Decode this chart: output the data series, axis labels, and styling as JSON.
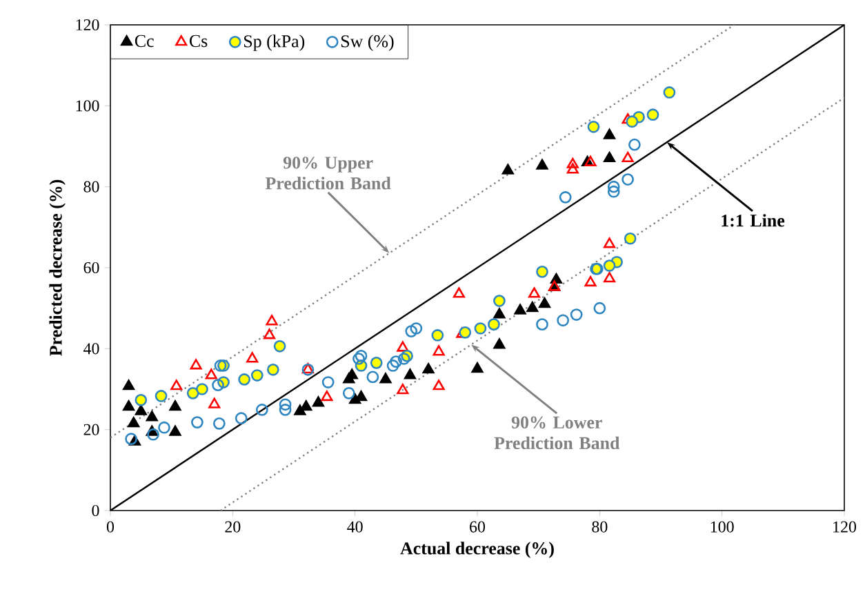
{
  "chart_data": {
    "type": "scatter",
    "xlabel": "Actual decrease (%)",
    "ylabel": "Predicted decrease (%)",
    "xlim": [
      0,
      120
    ],
    "ylim": [
      0,
      120
    ],
    "xticks": [
      0,
      20,
      40,
      60,
      80,
      100,
      120
    ],
    "yticks": [
      0,
      20,
      40,
      60,
      80,
      100,
      120
    ],
    "grid": false,
    "legend": "top left",
    "series": [
      {
        "name": "Cc",
        "color": "#000000",
        "marker": "triangle",
        "x": [
          3,
          3,
          3.8,
          4,
          5,
          6.8,
          6.8,
          10.6,
          10.6,
          31,
          32,
          34,
          39,
          40,
          39.5,
          41,
          45,
          49,
          52,
          60,
          63.6,
          63.6,
          67,
          69,
          71,
          72.6,
          65,
          70.6,
          78,
          81.6,
          81.6,
          72.9
        ],
        "values": [
          30.7,
          25.6,
          21.5,
          17,
          24.5,
          23,
          19.4,
          25.6,
          19.4,
          24.5,
          25.6,
          26.6,
          32.4,
          27.3,
          33.4,
          28,
          32.4,
          33.4,
          34.8,
          35,
          40.9,
          48.4,
          49.4,
          50,
          51,
          55.2,
          84,
          85.2,
          86,
          87,
          92.7,
          57
        ]
      },
      {
        "name": "Cs",
        "color": "#ff0000",
        "marker": "triangle",
        "x": [
          26.4,
          26,
          14,
          10.8,
          16.5,
          17,
          23.2,
          32.3,
          35.4,
          57,
          47.8,
          53.7,
          47.8,
          53.7,
          57.5,
          69.3,
          78.5,
          81.6,
          75.6,
          75.6,
          78.5,
          84.6,
          84.6,
          81.6,
          72.6
        ],
        "values": [
          46.7,
          43.3,
          35.8,
          30.7,
          33.4,
          26.2,
          37.5,
          34.8,
          28,
          53.5,
          40.2,
          39.2,
          29.7,
          30.7,
          43.6,
          53.5,
          56.3,
          57.3,
          84.2,
          85.5,
          86,
          87,
          96.5,
          65.8,
          55.2
        ]
      },
      {
        "name": "Sp (kPa)",
        "color": "#ffff00",
        "marker": "circle",
        "x": [
          5,
          8.3,
          13.5,
          15,
          18.5,
          18.5,
          21.9,
          24,
          26.6,
          27.7,
          41,
          43.5,
          48.5,
          53.5,
          58,
          60.5,
          62.7,
          63.6,
          70.6,
          79.6,
          82.8,
          81.6,
          91.4,
          88.7,
          86.4,
          85.3,
          79,
          85
        ],
        "values": [
          27.3,
          28.3,
          29,
          30,
          35.8,
          31.7,
          32.4,
          33.4,
          34.8,
          40.6,
          35.8,
          36.5,
          38.2,
          43.3,
          44,
          45,
          46,
          51.8,
          59,
          59.7,
          61.4,
          60.5,
          103.3,
          97.8,
          97.2,
          96.1,
          94.8,
          67.2
        ]
      },
      {
        "name": "Sw (%)",
        "color": "#2e86c1",
        "marker": "circle",
        "x": [
          3.4,
          7,
          8.8,
          14.2,
          17.8,
          21.4,
          24.8,
          28.6,
          28.6,
          17.6,
          18,
          32.3,
          35.6,
          39,
          40.6,
          41,
          42.9,
          46.2,
          46.7,
          48,
          49.2,
          50,
          79.4,
          70.6,
          74,
          76.2,
          80,
          85.7,
          84.6,
          82.3,
          82.3,
          74.4
        ],
        "values": [
          17.7,
          18.8,
          20.5,
          21.8,
          21.5,
          22.8,
          24.9,
          24.9,
          26.2,
          31,
          35.8,
          34.8,
          31.7,
          29,
          37.5,
          38.2,
          33,
          35.8,
          36.8,
          37.5,
          44.3,
          45,
          59.7,
          46,
          47,
          48.4,
          50,
          90.4,
          81.8,
          80,
          78.8,
          77.4
        ]
      },
      {
        "type": "line",
        "color": "#000000",
        "line_style": "solid",
        "marker": "none",
        "x": [
          0,
          120
        ],
        "values": [
          0,
          120
        ]
      },
      {
        "type": "line",
        "color": "#808080",
        "line_style": "dotted",
        "marker": "none",
        "x": [
          0,
          102
        ],
        "values": [
          18,
          120
        ]
      },
      {
        "type": "line",
        "color": "#808080",
        "line_style": "dotted",
        "marker": "none",
        "x": [
          18,
          120
        ],
        "values": [
          0,
          102
        ]
      }
    ],
    "annotations": [
      {
        "text": "90% Upper Prediction Band",
        "x": 45.6,
        "y": 63.6
      },
      {
        "text": "90% Lower Prediction Band",
        "x": 59,
        "y": 41
      },
      {
        "text": "1:1 Line",
        "x": 91,
        "y": 91
      }
    ]
  }
}
